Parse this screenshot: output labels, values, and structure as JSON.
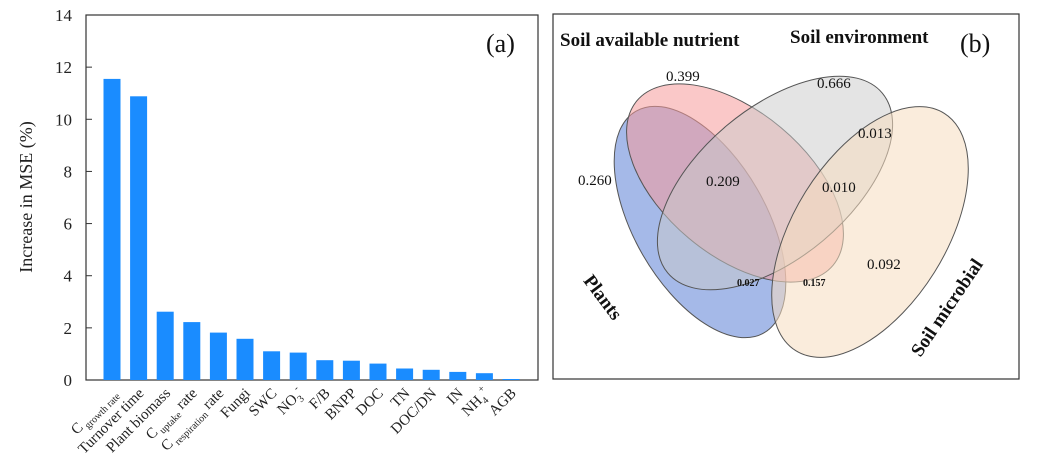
{
  "chart_data": [
    {
      "type": "bar",
      "panel_label": "(a)",
      "ylabel": "Increase in MSE (%)",
      "ylim": [
        0,
        14
      ],
      "yticks": [
        "0",
        "2",
        "4",
        "6",
        "8",
        "10",
        "12",
        "14"
      ],
      "bar_color": "#1a8cff",
      "grid": false,
      "categories": [
        {
          "main": "C",
          "sub": "growth rate",
          "sub_pos": "sub"
        },
        {
          "main": "Turnover time"
        },
        {
          "main": "Plant biomass"
        },
        {
          "main": "C",
          "sub": "uptake",
          "tail": " rate",
          "sub_pos": "sub"
        },
        {
          "main": "C",
          "sub": "respiration",
          "tail": " rate",
          "sub_pos": "sub"
        },
        {
          "main": "Fungi"
        },
        {
          "main": "SWC"
        },
        {
          "main": "NO",
          "sub": "3",
          "sup": "-"
        },
        {
          "main": "F/B"
        },
        {
          "main": "BNPP"
        },
        {
          "main": "DOC"
        },
        {
          "main": "TN"
        },
        {
          "main": "DOC/DN"
        },
        {
          "main": "IN"
        },
        {
          "main": "NH",
          "sub": "4",
          "sup": "+"
        },
        {
          "main": "AGB"
        }
      ],
      "values": [
        11.55,
        10.88,
        2.62,
        2.22,
        1.82,
        1.58,
        1.1,
        1.05,
        0.76,
        0.74,
        0.63,
        0.44,
        0.39,
        0.31,
        0.26,
        0.04
      ]
    },
    {
      "type": "venn",
      "panel_label": "(b)",
      "sets": [
        {
          "name": "Plants",
          "color": "#5b7fd6"
        },
        {
          "name": "Soil available nutrient",
          "color": "#f59a9a"
        },
        {
          "name": "Soil environment",
          "color": "#c9c9c9"
        },
        {
          "name": "Soil microbial",
          "color": "#f5dcc0"
        }
      ],
      "regions": [
        {
          "sets": [
            "Soil available nutrient"
          ],
          "value": "0.399"
        },
        {
          "sets": [
            "Soil environment"
          ],
          "value": "0.666"
        },
        {
          "sets": [
            "Plants"
          ],
          "value": "0.260"
        },
        {
          "sets": [
            "Plants",
            "Soil available nutrient"
          ],
          "value": "0.209"
        },
        {
          "sets": [
            "Soil environment",
            "Soil microbial"
          ],
          "value": "0.013"
        },
        {
          "sets": [
            "Soil available nutrient",
            "Soil environment"
          ],
          "value": "0.010"
        },
        {
          "sets": [
            "Soil microbial"
          ],
          "value": "0.092"
        },
        {
          "sets": [
            "Plants",
            "Soil available nutrient",
            "Soil microbial"
          ],
          "value": "0.027"
        },
        {
          "sets": [
            "Soil available nutrient",
            "Soil microbial",
            "Plants"
          ],
          "value": "0.157"
        }
      ]
    }
  ]
}
